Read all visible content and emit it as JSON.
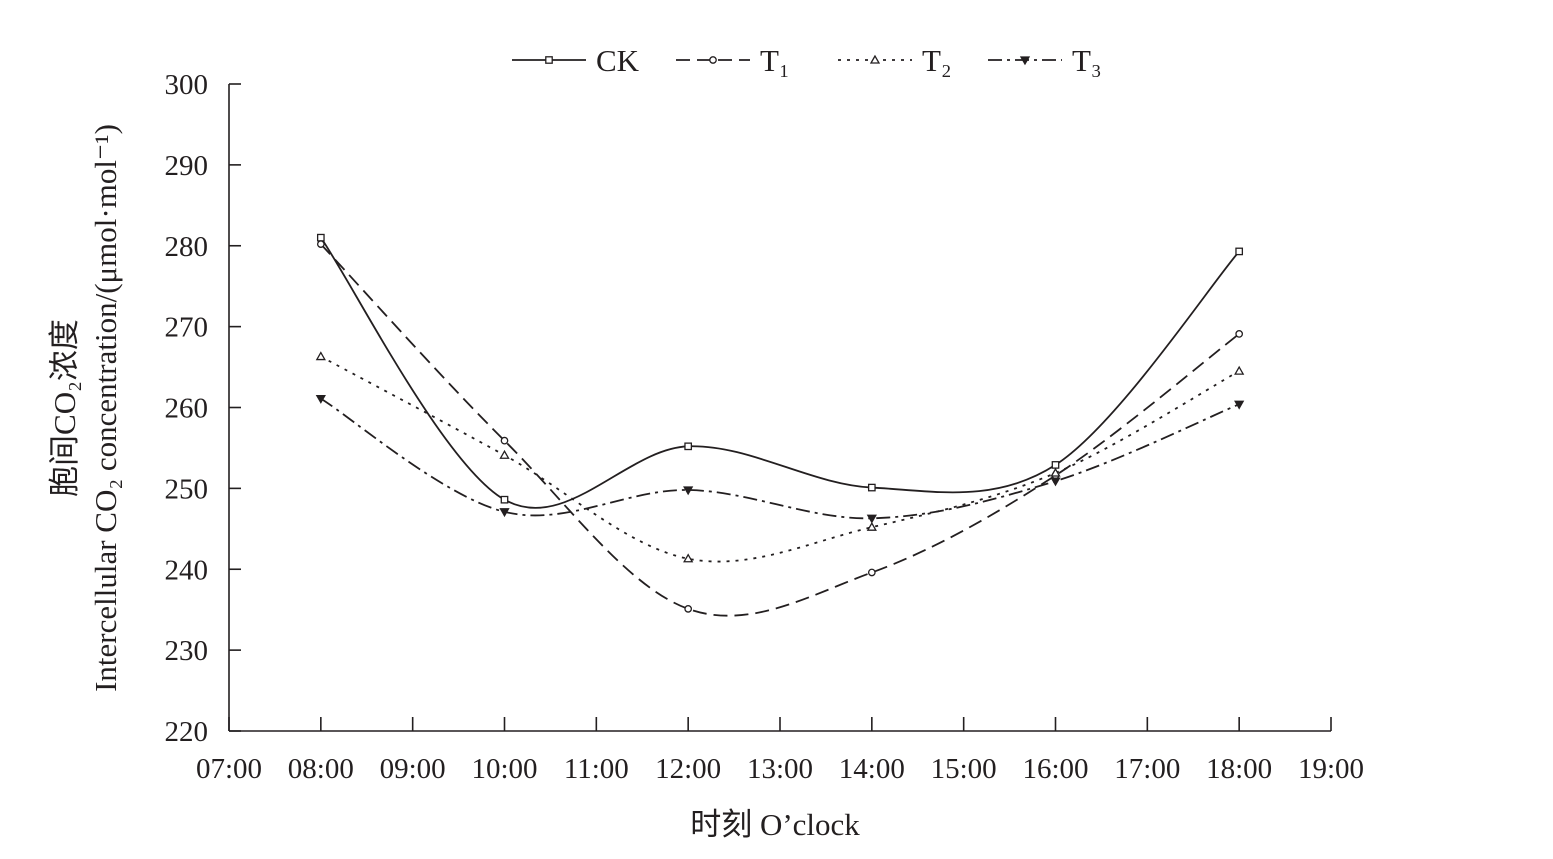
{
  "chart_data": {
    "type": "line",
    "title": "",
    "xlabel": "时刻 O’clock",
    "ylabel_cn": "胞间CO₂浓度",
    "ylabel_en": "Intercellular CO₂ concentration/(μmol·mol⁻¹)",
    "x_ticks": [
      "07:00",
      "08:00",
      "09:00",
      "10:00",
      "11:00",
      "12:00",
      "13:00",
      "14:00",
      "15:00",
      "16:00",
      "17:00",
      "18:00",
      "19:00"
    ],
    "xlim": [
      7,
      19
    ],
    "ylim": [
      220,
      300
    ],
    "y_ticks": [
      220,
      230,
      240,
      250,
      260,
      270,
      280,
      290,
      300
    ],
    "x": [
      8,
      10,
      12,
      14,
      16,
      18
    ],
    "series": [
      {
        "name": "CK",
        "values": [
          281.0,
          248.6,
          255.2,
          250.1,
          252.9,
          279.3
        ],
        "dash": "solid",
        "marker": "square"
      },
      {
        "name": "T₁",
        "values": [
          280.2,
          255.9,
          235.1,
          239.6,
          251.6,
          269.1
        ],
        "dash": "dashed",
        "marker": "circle"
      },
      {
        "name": "T₂",
        "values": [
          266.3,
          254.1,
          241.3,
          245.2,
          251.9,
          264.5
        ],
        "dash": "dotted",
        "marker": "triangle-up"
      },
      {
        "name": "T₃",
        "values": [
          261.1,
          247.1,
          249.8,
          246.3,
          250.9,
          260.4
        ],
        "dash": "dashdot",
        "marker": "triangle-down"
      }
    ],
    "legend_position": "top",
    "grid": false,
    "line_color": "#231f20"
  }
}
